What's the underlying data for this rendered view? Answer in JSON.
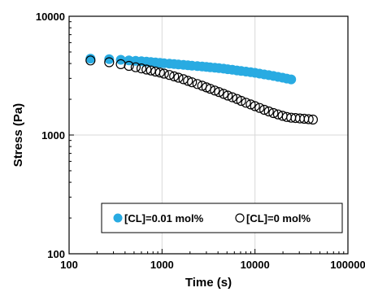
{
  "chart_data": {
    "type": "scatter",
    "title": "",
    "xlabel": "Time (s)",
    "ylabel": "Stress (Pa)",
    "xscale": "log",
    "yscale": "log",
    "xlim": [
      100,
      100000
    ],
    "ylim": [
      100,
      10000
    ],
    "grid": true,
    "legend_position": "bottom-right",
    "x_ticks": [
      "100",
      "1000",
      "10000",
      "100000"
    ],
    "y_ticks": [
      "100",
      "1000",
      "10000"
    ],
    "colors": {
      "series_cl001": "#29ABE2",
      "series_cl0": "#000000",
      "grid": "#d9d9d9"
    },
    "series": [
      {
        "name": "[CL]=0.01 mol%",
        "marker": "filled-circle",
        "x": [
          170,
          270,
          360,
          440,
          520,
          600,
          680,
          760,
          850,
          950,
          1050,
          1200,
          1350,
          1500,
          1700,
          1900,
          2100,
          2400,
          2700,
          3000,
          3300,
          3700,
          4100,
          4600,
          5100,
          5700,
          6400,
          7100,
          8000,
          9000,
          10000,
          11200,
          12600,
          14100,
          15800,
          17700,
          19800,
          22000,
          24500
        ],
        "y": [
          4400,
          4350,
          4300,
          4250,
          4220,
          4180,
          4150,
          4120,
          4080,
          4050,
          4020,
          3990,
          3960,
          3930,
          3900,
          3870,
          3840,
          3810,
          3780,
          3750,
          3720,
          3690,
          3660,
          3620,
          3580,
          3540,
          3500,
          3460,
          3420,
          3380,
          3340,
          3290,
          3240,
          3190,
          3140,
          3090,
          3040,
          2990,
          2940
        ]
      },
      {
        "name": "[CL]=0 mol%",
        "marker": "open-circle",
        "x": [
          170,
          270,
          360,
          440,
          520,
          600,
          680,
          760,
          850,
          950,
          1050,
          1200,
          1350,
          1500,
          1700,
          1900,
          2100,
          2400,
          2700,
          3000,
          3300,
          3700,
          4100,
          4600,
          5100,
          5700,
          6400,
          7100,
          8000,
          9000,
          10000,
          11200,
          12600,
          14100,
          15800,
          17700,
          19800,
          22000,
          24500,
          27300,
          30400,
          33900,
          37800,
          42000
        ],
        "y": [
          4250,
          4100,
          3950,
          3820,
          3720,
          3640,
          3560,
          3490,
          3420,
          3360,
          3290,
          3200,
          3120,
          3040,
          2950,
          2860,
          2780,
          2690,
          2600,
          2520,
          2450,
          2370,
          2300,
          2220,
          2150,
          2080,
          2010,
          1940,
          1870,
          1810,
          1750,
          1690,
          1630,
          1580,
          1530,
          1490,
          1450,
          1420,
          1400,
          1390,
          1380,
          1370,
          1360,
          1350
        ]
      }
    ]
  }
}
